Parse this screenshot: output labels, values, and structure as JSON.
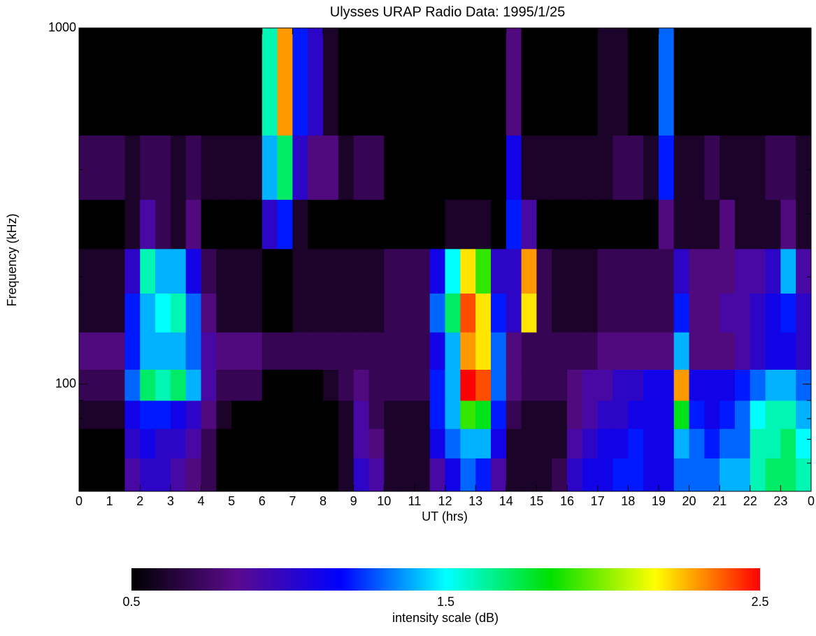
{
  "chart_data": {
    "type": "heatmap",
    "title": "Ulysses URAP Radio Data: 1995/1/25",
    "xlabel": "UT (hrs)",
    "ylabel": "Frequency (kHz)",
    "xlim": [
      0,
      24
    ],
    "xticks": [
      0,
      1,
      2,
      3,
      4,
      5,
      6,
      7,
      8,
      9,
      10,
      11,
      12,
      13,
      14,
      15,
      16,
      17,
      18,
      19,
      20,
      21,
      22,
      23,
      {
        "value": 24,
        "label": "0"
      }
    ],
    "ylim": [
      50,
      1000
    ],
    "ylog": true,
    "yticks": [
      100,
      1000
    ],
    "yminorticks": [
      60,
      70,
      80,
      90,
      200,
      300,
      400,
      500,
      600,
      700,
      800,
      900
    ],
    "xbins": [
      0,
      0.5,
      1,
      1.5,
      2,
      2.5,
      3,
      3.5,
      4,
      4.5,
      5,
      5.5,
      6,
      6.5,
      7,
      7.5,
      8,
      8.5,
      9,
      9.5,
      10,
      10.5,
      11,
      11.5,
      12,
      12.5,
      13,
      13.5,
      14,
      14.5,
      15,
      15.5,
      16,
      16.5,
      17,
      17.5,
      18,
      18.5,
      19,
      19.5,
      20,
      20.5,
      21,
      21.5,
      22,
      22.5,
      23,
      23.5,
      24
    ],
    "ybins": [
      50,
      62,
      75,
      90,
      110,
      140,
      180,
      240,
      330,
      500,
      1000
    ],
    "z": [
      [
        0.5,
        0.5,
        0.5,
        0.9,
        1.0,
        1.0,
        0.9,
        0.8,
        0.7,
        0.5,
        0.5,
        0.5,
        0.5,
        0.5,
        0.5,
        0.5,
        0.5,
        0.6,
        1.0,
        0.9,
        0.6,
        0.6,
        0.6,
        0.9,
        1.1,
        1.3,
        1.2,
        0.9,
        0.6,
        0.6,
        0.6,
        0.7,
        1.0,
        1.1,
        1.1,
        1.2,
        1.2,
        1.1,
        1.1,
        1.3,
        1.3,
        1.3,
        1.4,
        1.4,
        1.6,
        1.7,
        1.7,
        1.6
      ],
      [
        0.5,
        0.5,
        0.5,
        1.0,
        1.1,
        1.0,
        1.0,
        0.9,
        0.7,
        0.5,
        0.5,
        0.5,
        0.5,
        0.5,
        0.5,
        0.5,
        0.5,
        0.6,
        0.9,
        0.8,
        0.6,
        0.6,
        0.6,
        1.1,
        1.3,
        1.4,
        1.4,
        1.1,
        0.6,
        0.6,
        0.6,
        0.6,
        0.9,
        1.0,
        1.1,
        1.1,
        1.2,
        1.1,
        1.1,
        1.4,
        1.3,
        1.2,
        1.3,
        1.3,
        1.6,
        1.6,
        1.7,
        1.5
      ],
      [
        0.6,
        0.6,
        0.6,
        1.1,
        1.2,
        1.2,
        1.1,
        1.0,
        0.8,
        0.6,
        0.5,
        0.5,
        0.5,
        0.5,
        0.5,
        0.5,
        0.5,
        0.6,
        0.9,
        0.7,
        0.6,
        0.6,
        0.6,
        1.2,
        1.4,
        1.9,
        1.8,
        1.2,
        0.7,
        0.6,
        0.6,
        0.6,
        0.8,
        0.9,
        1.0,
        1.0,
        1.1,
        1.1,
        1.1,
        1.8,
        1.2,
        1.1,
        1.2,
        1.3,
        1.5,
        1.6,
        1.6,
        1.4
      ],
      [
        0.7,
        0.7,
        0.7,
        1.3,
        1.7,
        1.6,
        1.7,
        1.4,
        0.9,
        0.7,
        0.7,
        0.7,
        0.5,
        0.5,
        0.5,
        0.5,
        0.6,
        0.7,
        0.8,
        0.7,
        0.7,
        0.7,
        0.7,
        1.2,
        1.4,
        2.5,
        2.4,
        1.3,
        0.8,
        0.7,
        0.7,
        0.7,
        0.8,
        0.9,
        0.9,
        1.0,
        1.0,
        1.1,
        1.1,
        2.3,
        1.1,
        1.1,
        1.1,
        1.2,
        1.3,
        1.4,
        1.4,
        1.3
      ],
      [
        0.8,
        0.8,
        0.8,
        1.2,
        1.4,
        1.4,
        1.4,
        1.3,
        0.9,
        0.8,
        0.8,
        0.8,
        0.7,
        0.7,
        0.7,
        0.7,
        0.7,
        0.7,
        0.7,
        0.7,
        0.7,
        0.7,
        0.7,
        1.1,
        1.4,
        2.3,
        2.2,
        1.3,
        0.8,
        0.7,
        0.7,
        0.7,
        0.7,
        0.7,
        0.8,
        0.8,
        0.8,
        0.8,
        0.8,
        1.4,
        0.8,
        0.8,
        0.8,
        0.9,
        1.0,
        1.1,
        1.1,
        1.0
      ],
      [
        0.6,
        0.6,
        0.6,
        1.2,
        1.4,
        1.5,
        1.6,
        1.3,
        0.8,
        0.6,
        0.6,
        0.6,
        0.5,
        0.5,
        0.6,
        0.6,
        0.6,
        0.6,
        0.6,
        0.6,
        0.7,
        0.7,
        0.7,
        1.3,
        1.7,
        2.4,
        2.2,
        1.2,
        1.0,
        2.2,
        0.7,
        0.6,
        0.6,
        0.6,
        0.7,
        0.7,
        0.7,
        0.7,
        0.7,
        1.2,
        0.8,
        0.8,
        0.9,
        0.9,
        1.0,
        1.1,
        1.2,
        1.0
      ],
      [
        0.6,
        0.6,
        0.6,
        1.0,
        1.6,
        1.4,
        1.4,
        1.1,
        0.7,
        0.6,
        0.6,
        0.6,
        0.5,
        0.5,
        0.6,
        0.6,
        0.6,
        0.6,
        0.6,
        0.6,
        0.7,
        0.7,
        0.7,
        1.1,
        1.5,
        2.2,
        1.9,
        1.0,
        1.0,
        2.3,
        0.7,
        0.6,
        0.6,
        0.6,
        0.7,
        0.7,
        0.7,
        0.7,
        0.7,
        1.0,
        0.8,
        0.8,
        0.8,
        0.9,
        0.9,
        1.0,
        1.4,
        0.9
      ],
      [
        0.5,
        0.5,
        0.5,
        0.6,
        0.9,
        0.7,
        0.6,
        0.8,
        0.5,
        0.5,
        0.5,
        0.5,
        1.0,
        1.2,
        0.6,
        0.5,
        0.5,
        0.5,
        0.5,
        0.5,
        0.5,
        0.5,
        0.5,
        0.5,
        0.6,
        0.6,
        0.6,
        0.5,
        1.2,
        0.9,
        0.5,
        0.5,
        0.5,
        0.5,
        0.5,
        0.5,
        0.5,
        0.5,
        0.8,
        0.6,
        0.6,
        0.6,
        0.8,
        0.6,
        0.6,
        0.6,
        0.8,
        0.6
      ],
      [
        0.7,
        0.7,
        0.7,
        0.6,
        0.7,
        0.7,
        0.6,
        0.7,
        0.6,
        0.6,
        0.6,
        0.6,
        1.4,
        1.7,
        1.0,
        0.8,
        0.8,
        0.6,
        0.7,
        0.7,
        0.5,
        0.5,
        0.5,
        0.5,
        0.5,
        0.5,
        0.5,
        0.5,
        1.1,
        0.6,
        0.6,
        0.6,
        0.6,
        0.6,
        0.6,
        0.7,
        0.7,
        0.6,
        1.2,
        0.6,
        0.6,
        0.7,
        0.6,
        0.6,
        0.6,
        0.7,
        0.7,
        0.6
      ],
      [
        0.5,
        0.5,
        0.5,
        0.5,
        0.5,
        0.5,
        0.5,
        0.5,
        0.5,
        0.5,
        0.5,
        0.5,
        1.6,
        2.3,
        1.2,
        1.0,
        0.6,
        0.5,
        0.5,
        0.5,
        0.5,
        0.5,
        0.5,
        0.5,
        0.5,
        0.5,
        0.5,
        0.5,
        0.8,
        0.5,
        0.5,
        0.5,
        0.5,
        0.5,
        0.6,
        0.6,
        0.5,
        0.5,
        1.3,
        0.5,
        0.5,
        0.5,
        0.5,
        0.5,
        0.5,
        0.5,
        0.5,
        0.5
      ]
    ],
    "zlim": [
      0.5,
      2.5
    ],
    "zticks": [
      0.5,
      1.5,
      2.5
    ],
    "zlabel": "intensity scale (dB)",
    "colormap": [
      "#000000",
      "#5a0a8c",
      "#0000ff",
      "#00ffff",
      "#00e000",
      "#ffff00",
      "#ff0000"
    ]
  }
}
